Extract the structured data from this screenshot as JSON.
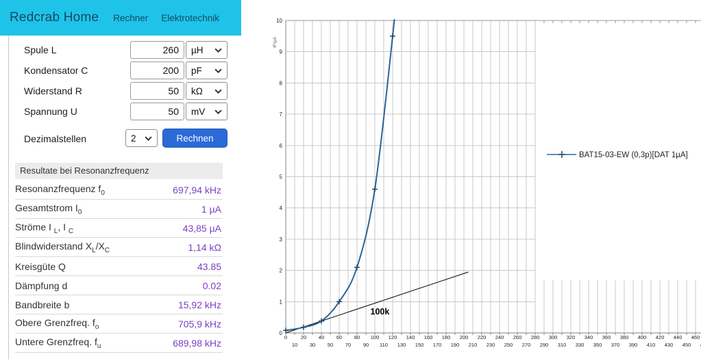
{
  "header": {
    "title": "Redcrab Home",
    "nav": [
      {
        "label": "Rechner"
      },
      {
        "label": "Elektrotechnik"
      }
    ]
  },
  "form": {
    "rows": [
      {
        "label": "Spule L",
        "value": "260",
        "unit": "µH"
      },
      {
        "label": "Kondensator C",
        "value": "200",
        "unit": "pF"
      },
      {
        "label": "Widerstand R",
        "value": "50",
        "unit": "kΩ"
      },
      {
        "label": "Spannung U",
        "value": "50",
        "unit": "mV"
      }
    ],
    "decimals_label": "Dezimalstellen",
    "decimals_value": "2",
    "submit_label": "Rechnen"
  },
  "results": {
    "header": "Resultate bei Resonanzfrequenz",
    "rows": [
      {
        "label": [
          {
            "t": "Resonanzfrequenz f"
          },
          {
            "t": "0",
            "sub": true
          }
        ],
        "value": "697,94 kHz"
      },
      {
        "label": [
          {
            "t": "Gesamtstrom I"
          },
          {
            "t": "0",
            "sub": true
          }
        ],
        "value": "1 µA"
      },
      {
        "label": [
          {
            "t": "Ströme I "
          },
          {
            "t": "L",
            "sub": true
          },
          {
            "t": ", I "
          },
          {
            "t": "C",
            "sub": true
          }
        ],
        "value": "43,85 µA"
      },
      {
        "label": [
          {
            "t": "Blindwiderstand X"
          },
          {
            "t": "L",
            "sub": true
          },
          {
            "t": "/X"
          },
          {
            "t": "C",
            "sub": true
          }
        ],
        "value": "1,14 kΩ"
      },
      {
        "label": [
          {
            "t": "Kreisgüte Q"
          }
        ],
        "value": "43.85"
      },
      {
        "label": [
          {
            "t": "Dämpfung d"
          }
        ],
        "value": "0.02"
      },
      {
        "label": [
          {
            "t": "Bandbreite b"
          }
        ],
        "value": "15,92 kHz"
      },
      {
        "label": [
          {
            "t": "Obere Grenzfreq. f"
          },
          {
            "t": "o",
            "sub": true
          }
        ],
        "value": "705,9 kHz"
      },
      {
        "label": [
          {
            "t": "Untere Grenzfreq. f"
          },
          {
            "t": "u",
            "sub": true
          }
        ],
        "value": "689,98 kHz"
      }
    ]
  },
  "colors": {
    "header_bg": "#1fc3e8",
    "header_text": "#134b64",
    "button_bg": "#2a6bd8",
    "button_text": "#ffffff",
    "result_value": "#7d3fc4",
    "grid": "#c9c9c9",
    "axis": "#808080"
  },
  "chart_data": {
    "type": "line",
    "title": "",
    "xlabel": "",
    "ylabel": "IF/µA",
    "x_range": [
      0,
      480
    ],
    "x_tick_step": 10,
    "y_range": [
      0,
      10
    ],
    "y_tick_step": 1,
    "grid": "on",
    "grid_x_extent": 280,
    "series": [
      {
        "name": "BAT15-03-EW (0,3p)[DAT 1µA]",
        "color": "#2c6397",
        "marker": "plus",
        "marker_color": "#1f4868",
        "points": [
          [
            0,
            0.08
          ],
          [
            20,
            0.18
          ],
          [
            40,
            0.38
          ],
          [
            60,
            1.0
          ],
          [
            80,
            2.1
          ],
          [
            100,
            4.6
          ],
          [
            120,
            9.5
          ]
        ],
        "extend_to": [
          122.5,
          10.4
        ]
      }
    ],
    "annotation": {
      "line_from": [
        0,
        0
      ],
      "line_to": [
        205,
        1.95
      ],
      "label": "100k",
      "label_at": [
        95,
        0.59
      ]
    },
    "legend": {
      "text": "BAT15-03-EW (0,3p)[DAT 1µA]",
      "position": "right-middle"
    }
  }
}
